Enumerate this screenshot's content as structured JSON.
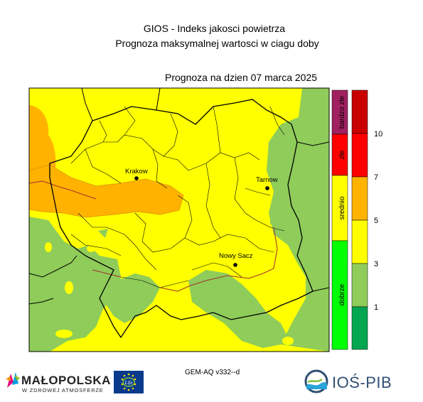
{
  "header": {
    "title_line1": "GIOS - Indeks jakosci powietrza",
    "title_line2": "Prognoza maksymalnej wartosci w ciagu doby",
    "forecast_date": "Prognoza na dzien  07 marca 2025"
  },
  "map": {
    "cities": [
      {
        "name": "Krakow"
      },
      {
        "name": "Tarnow"
      },
      {
        "name": "Nowy Sacz"
      }
    ]
  },
  "legend": {
    "categories": [
      {
        "label": "bardzo złe",
        "color": "#a02060"
      },
      {
        "label": "złe",
        "color": "#ff0000"
      },
      {
        "label": "srednio",
        "color": "#ffff00"
      },
      {
        "label": "dobrze",
        "color": "#00ff00"
      }
    ],
    "scale": [
      {
        "color": "#c80000"
      },
      {
        "color": "#ff0000"
      },
      {
        "color": "#ffb300"
      },
      {
        "color": "#ffff00"
      },
      {
        "color": "#8fcc5a"
      },
      {
        "color": "#00a650"
      }
    ],
    "ticks": [
      "10",
      "7",
      "5",
      "3",
      "1"
    ]
  },
  "colors": {
    "green_area": "#8fcc5a",
    "yellow_area": "#ffff00",
    "orange_area": "#ffb300",
    "light_orange": "#f5b041"
  },
  "footer": {
    "model": "GEM-AQ v332--d",
    "malopolska_name": "MAŁOPOLSKA",
    "malopolska_tagline": "W ZDROWEJ ATMOSFERZE",
    "eu_flag_text": "Life",
    "ios_name": "IOŚ-PIB"
  }
}
